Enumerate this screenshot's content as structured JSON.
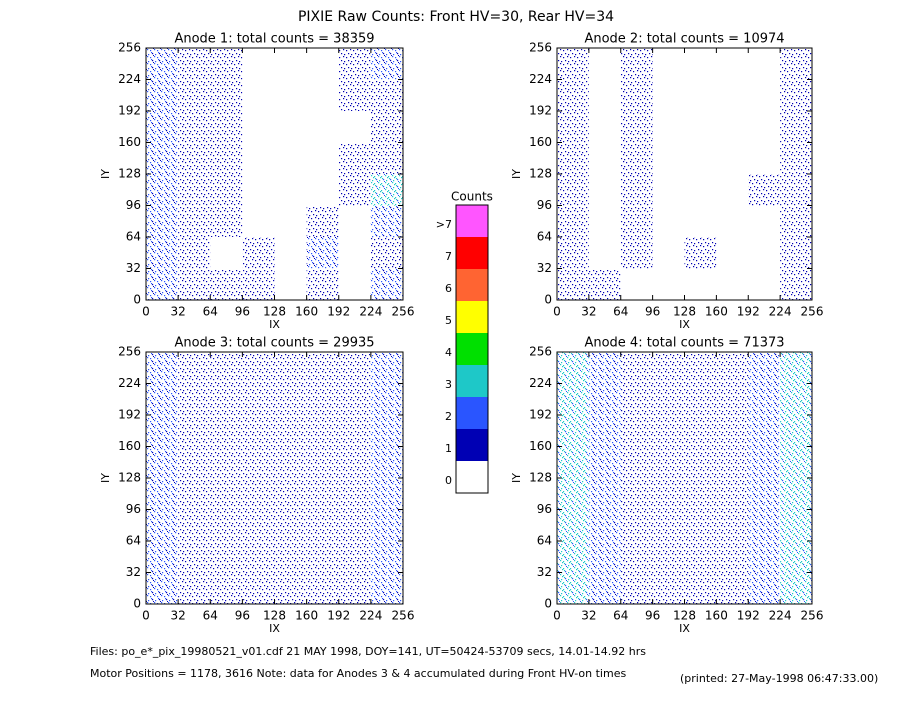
{
  "title": "PIXIE Raw Counts:  Front HV=30, Rear HV=34",
  "chart_data": [
    {
      "type": "heatmap",
      "title": "Anode 1: total counts = 38359",
      "xlabel": "IX",
      "ylabel": "IY",
      "xlim": [
        0,
        256
      ],
      "ylim": [
        0,
        256
      ],
      "xticks": [
        0,
        32,
        64,
        96,
        128,
        160,
        192,
        224,
        256
      ],
      "yticks": [
        0,
        32,
        64,
        96,
        128,
        160,
        192,
        224,
        256
      ],
      "z": [
        [
          2,
          1,
          1,
          1,
          0,
          1,
          0,
          2
        ],
        [
          2,
          1,
          0,
          1,
          0,
          2,
          0,
          1
        ],
        [
          2,
          1,
          1,
          0,
          0,
          1,
          0,
          2
        ],
        [
          2,
          1,
          1,
          0,
          0,
          0,
          1,
          3
        ],
        [
          2,
          1,
          1,
          0,
          0,
          0,
          1,
          1
        ],
        [
          2,
          1,
          1,
          0,
          0,
          0,
          0,
          1
        ],
        [
          2,
          1,
          1,
          0,
          0,
          0,
          1,
          1
        ],
        [
          2,
          1,
          1,
          0,
          0,
          0,
          1,
          2
        ]
      ]
    },
    {
      "type": "heatmap",
      "title": "Anode 2: total counts = 10974",
      "xlabel": "IX",
      "ylabel": "IY",
      "xlim": [
        0,
        256
      ],
      "ylim": [
        0,
        256
      ],
      "xticks": [
        0,
        32,
        64,
        96,
        128,
        160,
        192,
        224,
        256
      ],
      "yticks": [
        0,
        32,
        64,
        96,
        128,
        160,
        192,
        224,
        256
      ],
      "z": [
        [
          1,
          1,
          0,
          0,
          0,
          0,
          0,
          1
        ],
        [
          1,
          0,
          1,
          0,
          1,
          0,
          0,
          1
        ],
        [
          1,
          0,
          1,
          0,
          0,
          0,
          0,
          1
        ],
        [
          1,
          0,
          1,
          0,
          0,
          0,
          1,
          1
        ],
        [
          1,
          0,
          1,
          0,
          0,
          0,
          0,
          1
        ],
        [
          1,
          0,
          1,
          0,
          0,
          0,
          0,
          1
        ],
        [
          1,
          0,
          1,
          0,
          0,
          0,
          0,
          1
        ],
        [
          1,
          0,
          1,
          0,
          0,
          0,
          0,
          1
        ]
      ]
    },
    {
      "type": "heatmap",
      "title": "Anode 3: total counts = 29935",
      "xlabel": "IX",
      "ylabel": "IY",
      "xlim": [
        0,
        256
      ],
      "ylim": [
        0,
        256
      ],
      "xticks": [
        0,
        32,
        64,
        96,
        128,
        160,
        192,
        224,
        256
      ],
      "yticks": [
        0,
        32,
        64,
        96,
        128,
        160,
        192,
        224,
        256
      ],
      "z": [
        [
          2,
          1,
          1,
          1,
          1,
          1,
          1,
          2
        ],
        [
          2,
          1,
          1,
          1,
          1,
          1,
          1,
          2
        ],
        [
          2,
          1,
          1,
          1,
          1,
          1,
          1,
          2
        ],
        [
          2,
          1,
          1,
          1,
          1,
          1,
          1,
          2
        ],
        [
          2,
          1,
          1,
          1,
          1,
          1,
          1,
          2
        ],
        [
          2,
          1,
          1,
          1,
          1,
          1,
          1,
          2
        ],
        [
          2,
          1,
          1,
          1,
          1,
          1,
          1,
          2
        ],
        [
          2,
          1,
          1,
          1,
          1,
          1,
          1,
          2
        ]
      ]
    },
    {
      "type": "heatmap",
      "title": "Anode 4: total counts = 71373",
      "xlabel": "IX",
      "ylabel": "IY",
      "xlim": [
        0,
        256
      ],
      "ylim": [
        0,
        256
      ],
      "xticks": [
        0,
        32,
        64,
        96,
        128,
        160,
        192,
        224,
        256
      ],
      "yticks": [
        0,
        32,
        64,
        96,
        128,
        160,
        192,
        224,
        256
      ],
      "z": [
        [
          3,
          2,
          1,
          1,
          1,
          1,
          2,
          3
        ],
        [
          3,
          2,
          1,
          1,
          1,
          1,
          2,
          3
        ],
        [
          3,
          2,
          1,
          1,
          1,
          1,
          2,
          3
        ],
        [
          3,
          2,
          1,
          1,
          1,
          1,
          2,
          3
        ],
        [
          3,
          2,
          1,
          1,
          1,
          1,
          2,
          3
        ],
        [
          3,
          2,
          1,
          1,
          1,
          1,
          2,
          3
        ],
        [
          3,
          2,
          1,
          1,
          1,
          1,
          2,
          3
        ],
        [
          3,
          2,
          1,
          1,
          1,
          1,
          2,
          3
        ]
      ]
    }
  ],
  "colorbar": {
    "title": "Counts",
    "ticks": [
      0,
      1,
      2,
      3,
      4,
      5,
      6,
      7,
      {
        "value": 8,
        "label": ">7"
      }
    ],
    "colors": [
      "#ffffff",
      "#0000b4",
      "#2a55ff",
      "#1ec8c8",
      "#00e000",
      "#ffff00",
      "#ff6432",
      "#ff0000",
      "#ff55ff"
    ]
  },
  "footer": [
    "Files: po_e*_pix_19980521_v01.cdf    21 MAY 1998, DOY=141, UT=50424-53709 secs, 14.01-14.92 hrs",
    "Motor Positions = 1178, 3616    Note: data for Anodes 3 & 4 accumulated during Front HV-on times",
    "(printed: 27-May-1998 06:47:33.00)"
  ]
}
